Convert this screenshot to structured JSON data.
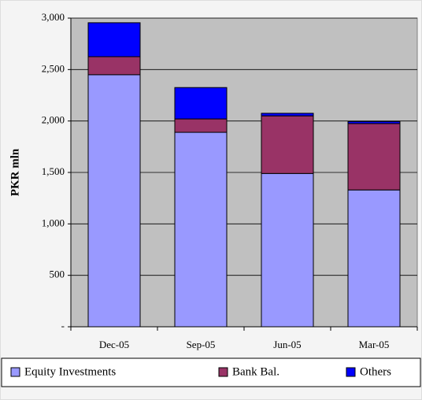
{
  "chart_data": {
    "type": "stacked_bar",
    "ylabel": "PKR mln",
    "categories": [
      "Dec-05",
      "Sep-05",
      "Jun-05",
      "Mar-05"
    ],
    "series": [
      {
        "name": "Equity Investments",
        "color": "#9999ff",
        "values": [
          2450,
          1890,
          1490,
          1330
        ]
      },
      {
        "name": "Bank Bal.",
        "color": "#993366",
        "values": [
          175,
          130,
          560,
          645
        ]
      },
      {
        "name": "Others",
        "color": "#0000ff",
        "values": [
          330,
          305,
          25,
          20
        ]
      }
    ],
    "ylim": [
      0,
      3000
    ],
    "yticks": [
      {
        "value": 0,
        "label": "-"
      },
      500,
      {
        "value": 1000,
        "label": "1,000"
      },
      {
        "value": 1500,
        "label": "1,500"
      },
      {
        "value": 2000,
        "label": "2,000"
      },
      {
        "value": 2500,
        "label": "2,500"
      },
      {
        "value": 3000,
        "label": "3,000"
      }
    ],
    "grid": true,
    "legend": "bottom"
  }
}
